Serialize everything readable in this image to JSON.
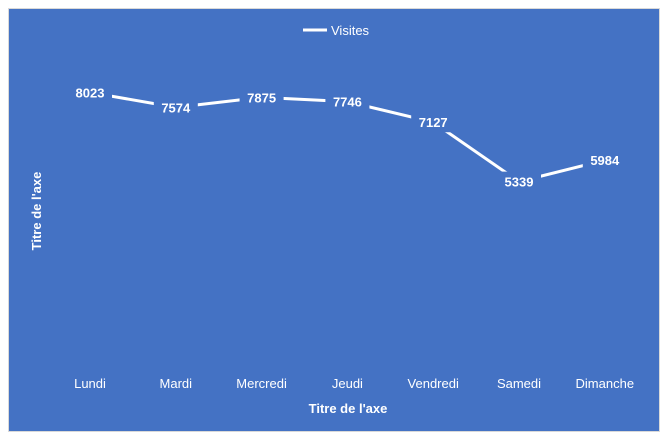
{
  "chart_data": {
    "type": "line",
    "categories": [
      "Lundi",
      "Mardi",
      "Mercredi",
      "Jeudi",
      "Vendredi",
      "Samedi",
      "Dimanche"
    ],
    "series": [
      {
        "name": "Visites",
        "values": [
          8023,
          7574,
          7875,
          7746,
          7127,
          5339,
          5984
        ]
      }
    ],
    "title": "",
    "xlabel": "Titre de l'axe",
    "ylabel": "Titre de l'axe",
    "ylim": [
      0,
      9000
    ],
    "grid": false,
    "drop_lines": true,
    "data_labels": true,
    "legend": "top",
    "colors": {
      "background": "#4472C4",
      "line": "#FFFFFF",
      "text": "#FFFFFF"
    }
  }
}
